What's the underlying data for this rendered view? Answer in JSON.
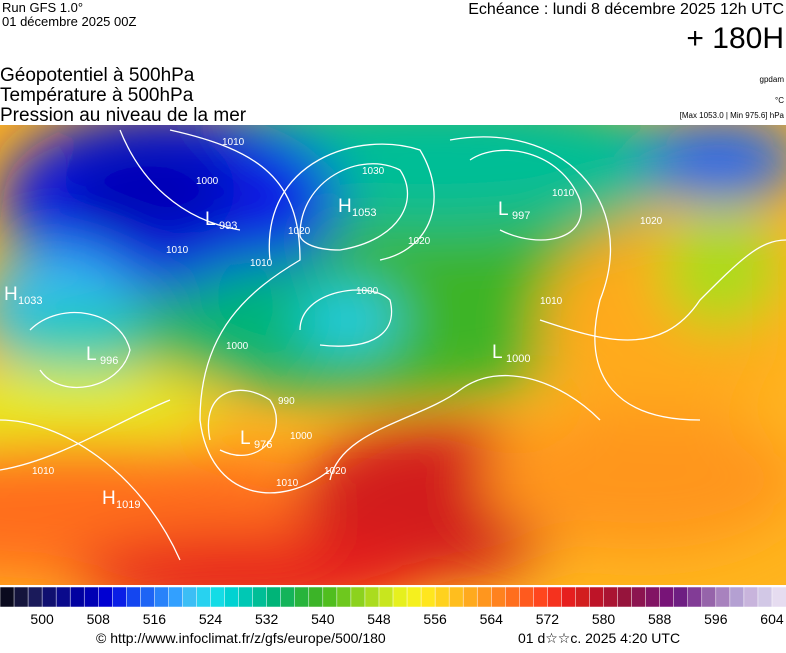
{
  "header": {
    "run": "Run GFS 1.0°",
    "run_date": "01 décembre 2025 00Z",
    "valid": "Echéance : lundi 8 décembre 2025 12h UTC",
    "lead": "+ 180H"
  },
  "titles": [
    "Géopotentiel à 500hPa",
    "Température à 500hPa",
    "Pression au niveau de la mer"
  ],
  "units": {
    "geopotential": "gpdam",
    "temperature": "°C",
    "pressure": "[Max 1053.0 | Min 975.6] hPa"
  },
  "systems": [
    {
      "letter": "H",
      "value": 1053
    },
    {
      "letter": "L",
      "value": 993
    },
    {
      "letter": "L",
      "value": 997
    },
    {
      "letter": "H",
      "value": 1033
    },
    {
      "letter": "L",
      "value": 996
    },
    {
      "letter": "L",
      "value": 1000
    },
    {
      "letter": "L",
      "value": 976
    },
    {
      "letter": "H",
      "value": 1019
    }
  ],
  "isobar_labels": [
    1010,
    1000,
    1010,
    1030,
    1020,
    1020,
    1010,
    1000,
    1000,
    990,
    1000,
    1010,
    1020,
    1010,
    1010,
    1020,
    1010
  ],
  "colorbar": {
    "range": [
      494,
      606
    ],
    "ticks": [
      500,
      508,
      516,
      524,
      532,
      540,
      548,
      556,
      564,
      572,
      580,
      588,
      596,
      604
    ],
    "colors": [
      "#0a0a1e",
      "#14143c",
      "#1a1a5a",
      "#101070",
      "#0a0a8c",
      "#0000a0",
      "#0000b4",
      "#0000d2",
      "#0a1ee6",
      "#1446f0",
      "#1e64f5",
      "#2882fa",
      "#32a0ff",
      "#3cbef5",
      "#28d2f0",
      "#14dce6",
      "#00d2d2",
      "#00c8b4",
      "#00be96",
      "#00b478",
      "#14b45a",
      "#28b43c",
      "#3cb428",
      "#50be1e",
      "#6ec81e",
      "#8cd21e",
      "#aadc1e",
      "#c8e61e",
      "#e6f01e",
      "#f5f01e",
      "#ffe61e",
      "#ffd21e",
      "#ffbe1e",
      "#ffaa1e",
      "#ff961e",
      "#ff821e",
      "#ff6e1e",
      "#ff5a1e",
      "#ff461e",
      "#f5321e",
      "#e61e1e",
      "#d21e1e",
      "#be1428",
      "#aa1432",
      "#96143c",
      "#8c1450",
      "#821464",
      "#781478",
      "#6e1e82",
      "#823c96",
      "#9664aa",
      "#a882be",
      "#b4a0d2",
      "#c8b4dc",
      "#d2c8e6",
      "#e6dcf0"
    ]
  },
  "footer": {
    "credit": "© http://www.infoclimat.fr/z/gfs/europe/500/180",
    "stamp": "01 d☆☆c. 2025  4:20 UTC"
  }
}
